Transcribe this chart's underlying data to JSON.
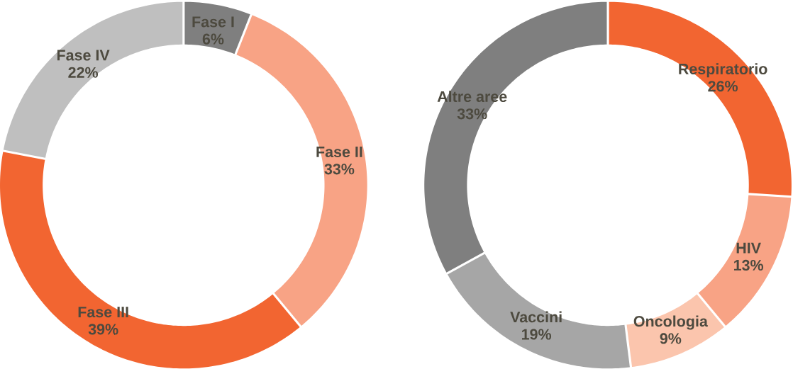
{
  "chart_data": [
    {
      "type": "donut",
      "categories": [
        "Fase I",
        "Fase II",
        "Fase III",
        "Fase IV"
      ],
      "values": [
        6,
        33,
        39,
        22
      ],
      "value_labels": [
        "6%",
        "33%",
        "39%",
        "22%"
      ],
      "colors": [
        "#7f7f7f",
        "#f8a385",
        "#f26531",
        "#bfbfbf"
      ]
    },
    {
      "type": "donut",
      "categories": [
        "Respiratorio",
        "HIV",
        "Oncologia",
        "Vaccini",
        "Altre aree"
      ],
      "values": [
        26,
        13,
        9,
        19,
        33
      ],
      "value_labels": [
        "26%",
        "13%",
        "9%",
        "19%",
        "33%"
      ],
      "colors": [
        "#f26531",
        "#f8a385",
        "#fbc5ad",
        "#a6a6a6",
        "#7f7f7f"
      ]
    }
  ]
}
